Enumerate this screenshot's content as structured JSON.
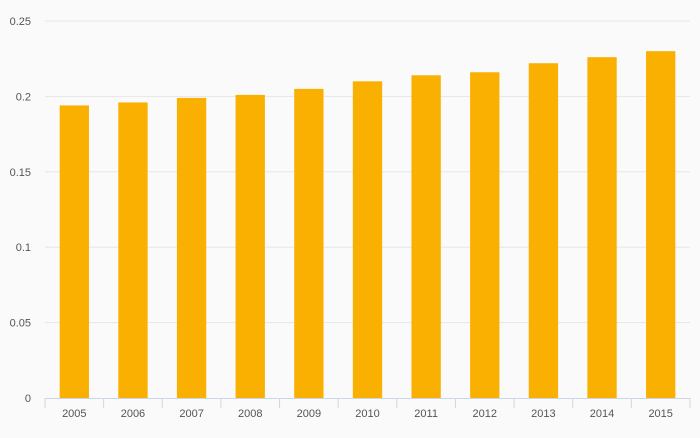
{
  "chart_data": {
    "type": "bar",
    "categories": [
      "2005",
      "2006",
      "2007",
      "2008",
      "2009",
      "2010",
      "2011",
      "2012",
      "2013",
      "2014",
      "2015"
    ],
    "values": [
      0.194,
      0.196,
      0.199,
      0.201,
      0.205,
      0.21,
      0.214,
      0.216,
      0.222,
      0.226,
      0.23
    ],
    "ylim": [
      0,
      0.25
    ],
    "yticks": [
      "0",
      "0.05",
      "0.1",
      "0.15",
      "0.2",
      "0.25"
    ],
    "title": "",
    "xlabel": "",
    "ylabel": "",
    "grid": "horizontal",
    "legend": "none",
    "colors": {
      "bar": "#f9b000",
      "grid": "#e6e6e6",
      "axis": "#ccd6eb",
      "text": "#555555",
      "background": "#fafafa"
    }
  }
}
